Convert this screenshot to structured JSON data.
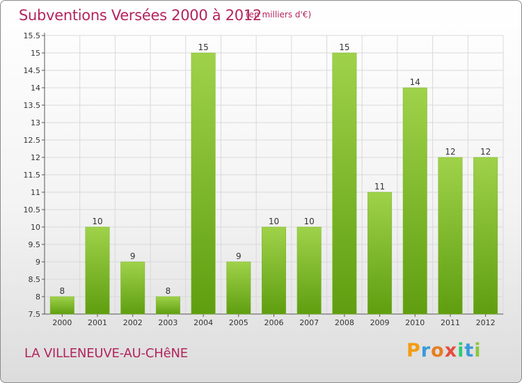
{
  "header": {
    "title": "Subventions Versées 2000 à 2012",
    "subtitle": "(en milliers d'€)"
  },
  "footer": {
    "commune": "LA VILLENEUVE-AU-CHêNE",
    "logo_letters": [
      "P",
      "r",
      "o",
      "x",
      "i",
      "t",
      "i"
    ],
    "logo_colors": [
      "#f39c12",
      "#3a9ad9",
      "#e67e22",
      "#e74c3c",
      "#2ecc71",
      "#3a9ad9",
      "#8cc63f"
    ]
  },
  "colors": {
    "title": "#b3245d",
    "bar_top": "#9fd24a",
    "bar_bottom": "#5f9e10",
    "grid": "#d9d9d9"
  },
  "chart_data": {
    "type": "bar",
    "title": "Subventions Versées 2000 à 2012",
    "subtitle": "(en milliers d'€)",
    "xlabel": "",
    "ylabel": "",
    "categories": [
      "2000",
      "2001",
      "2002",
      "2003",
      "2004",
      "2005",
      "2006",
      "2007",
      "2008",
      "2009",
      "2010",
      "2011",
      "2012"
    ],
    "values": [
      8,
      10,
      9,
      8,
      15,
      9,
      10,
      10,
      15,
      11,
      14,
      12,
      12
    ],
    "ylim": [
      7.5,
      15.5
    ],
    "yticks": [
      "7.5",
      "8",
      "8.5",
      "9",
      "9.5",
      "10",
      "10.5",
      "11",
      "11.5",
      "12",
      "12.5",
      "13",
      "13.5",
      "14",
      "14.5",
      "15",
      "15.5"
    ],
    "grid": true,
    "legend": "none"
  }
}
